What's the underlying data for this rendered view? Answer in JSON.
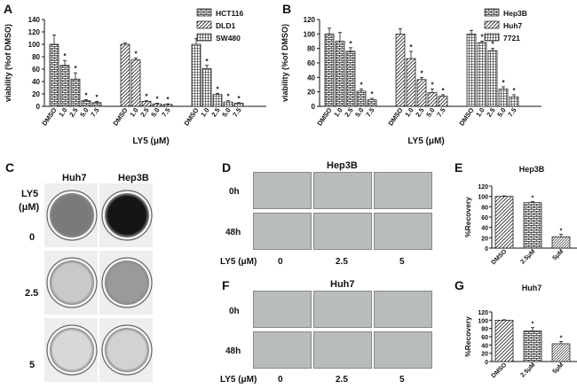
{
  "panels": {
    "A": {
      "letter": "A"
    },
    "B": {
      "letter": "B"
    },
    "C": {
      "letter": "C"
    },
    "D": {
      "letter": "D"
    },
    "E": {
      "letter": "E"
    },
    "F": {
      "letter": "F"
    },
    "G": {
      "letter": "G"
    }
  },
  "C": {
    "col_labels": [
      "Huh7",
      "Hep3B"
    ],
    "unit_label_1": "LY5",
    "unit_label_2": "(μM)",
    "row_labels": [
      "0",
      "2.5",
      "5"
    ]
  },
  "D": {
    "title": "Hep3B",
    "row_labels": [
      "0h",
      "48h"
    ],
    "x_label": "LY5 (μM)",
    "col_labels": [
      "0",
      "2.5",
      "5"
    ]
  },
  "F": {
    "title": "Huh7",
    "row_labels": [
      "0h",
      "48h"
    ],
    "x_label": "LY5 (μM)",
    "col_labels": [
      "0",
      "2.5",
      "5"
    ]
  },
  "chart_data": [
    {
      "id": "A",
      "type": "bar",
      "ylabel": "viability (%of DMSO)",
      "xlabel": "LY5 (μM)",
      "ylim": [
        0,
        140
      ],
      "yticks": [
        0,
        20,
        40,
        60,
        80,
        100,
        120,
        140
      ],
      "categories": [
        "DMSO",
        "1.0",
        "2.5",
        "5.0",
        "7.5"
      ],
      "series": [
        {
          "name": "HCT116",
          "values": [
            100,
            66,
            44,
            9,
            6
          ],
          "errors": [
            15,
            8,
            10,
            2,
            2
          ],
          "sig": [
            "",
            "*",
            "*",
            "*",
            "*"
          ],
          "pattern": "brick"
        },
        {
          "name": "DLD1",
          "values": [
            100,
            75,
            8,
            4,
            3
          ],
          "errors": [
            2,
            3,
            1,
            1,
            1
          ],
          "sig": [
            "",
            "*",
            "*",
            "*",
            "*"
          ],
          "pattern": "diag"
        },
        {
          "name": "SW480",
          "values": [
            100,
            61,
            19,
            7,
            5
          ],
          "errors": [
            9,
            5,
            2,
            2,
            1
          ],
          "sig": [
            "",
            "*",
            "*",
            "*",
            "*"
          ],
          "pattern": "grid"
        }
      ]
    },
    {
      "id": "B",
      "type": "bar",
      "ylabel": "viability (%of DMSO)",
      "xlabel": "LY5 (μM)",
      "ylim": [
        0,
        120
      ],
      "yticks": [
        0,
        20,
        40,
        60,
        80,
        100,
        120
      ],
      "categories": [
        "DMSO",
        "1.0",
        "2.5",
        "5.0",
        "7.5"
      ],
      "series": [
        {
          "name": "Hep3B",
          "values": [
            100,
            90,
            76,
            21,
            9
          ],
          "errors": [
            8,
            12,
            5,
            3,
            2
          ],
          "sig": [
            "",
            "",
            "*",
            "*",
            "*"
          ],
          "pattern": "brick"
        },
        {
          "name": "Huh7",
          "values": [
            100,
            66,
            37,
            19,
            14
          ],
          "errors": [
            7,
            10,
            3,
            5,
            2
          ],
          "sig": [
            "",
            "*",
            "*",
            "*",
            "*"
          ],
          "pattern": "diag"
        },
        {
          "name": "7721",
          "values": [
            100,
            88,
            77,
            24,
            13
          ],
          "errors": [
            5,
            2,
            3,
            3,
            3
          ],
          "sig": [
            "",
            "*",
            "*",
            "*",
            "*"
          ],
          "pattern": "grid"
        }
      ]
    },
    {
      "id": "E",
      "type": "bar",
      "title": "Hep3B",
      "ylabel": "%Recovery",
      "ylim": [
        0,
        120
      ],
      "yticks": [
        0,
        20,
        40,
        60,
        80,
        100,
        120
      ],
      "categories": [
        "DMSO",
        "2.5μM",
        "5μM"
      ],
      "values": [
        100,
        88,
        22
      ],
      "errors": [
        1,
        2,
        5
      ],
      "sig": [
        "",
        "*",
        "*"
      ]
    },
    {
      "id": "G",
      "type": "bar",
      "title": "Huh7",
      "ylabel": "%Recovery",
      "ylim": [
        0,
        120
      ],
      "yticks": [
        0,
        20,
        40,
        60,
        80,
        100,
        120
      ],
      "categories": [
        "DMSO",
        "2.5μM",
        "5μM"
      ],
      "values": [
        100,
        74,
        43
      ],
      "errors": [
        1,
        8,
        5
      ],
      "sig": [
        "",
        "*",
        "*"
      ]
    }
  ]
}
